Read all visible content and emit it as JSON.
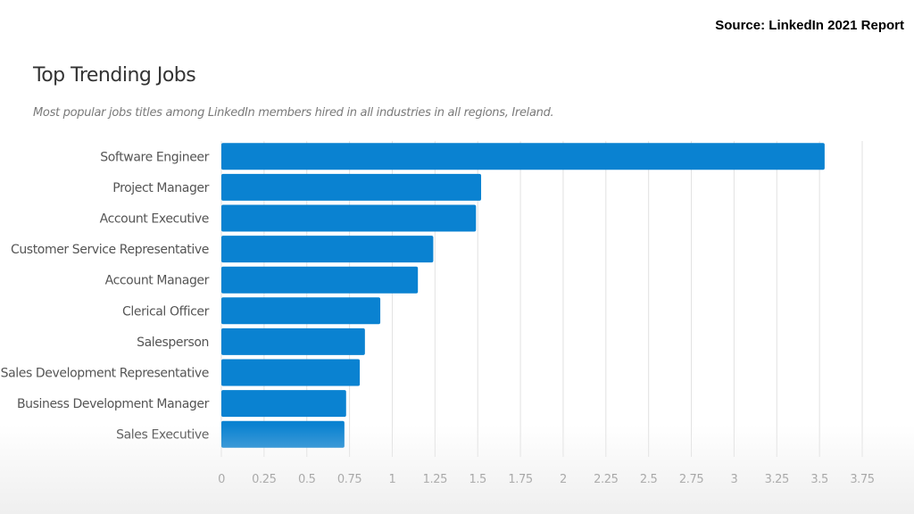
{
  "source": "Source: LinkedIn 2021 Report",
  "chart_data": {
    "type": "bar",
    "orientation": "horizontal",
    "title": "Top Trending Jobs",
    "subtitle": "Most popular jobs titles among LinkedIn members hired in all industries in all regions, Ireland.",
    "categories": [
      "Software Engineer",
      "Project Manager",
      "Account Executive",
      "Customer Service Representative",
      "Account Manager",
      "Clerical Officer",
      "Salesperson",
      "Sales Development Representative",
      "Business Development Manager",
      "Sales Executive"
    ],
    "values": [
      3.53,
      1.52,
      1.49,
      1.24,
      1.15,
      0.93,
      0.84,
      0.81,
      0.73,
      0.72
    ],
    "xlim": [
      0,
      3.75
    ],
    "xticks": [
      "0",
      "0.25",
      "0.5",
      "0.75",
      "1",
      "1.25",
      "1.5",
      "1.75",
      "2",
      "2.25",
      "2.5",
      "2.75",
      "3",
      "3.25",
      "3.5",
      "3.75"
    ],
    "grid": true,
    "bar_color": "#0a82d1",
    "grid_color": "#e2e2e2"
  }
}
